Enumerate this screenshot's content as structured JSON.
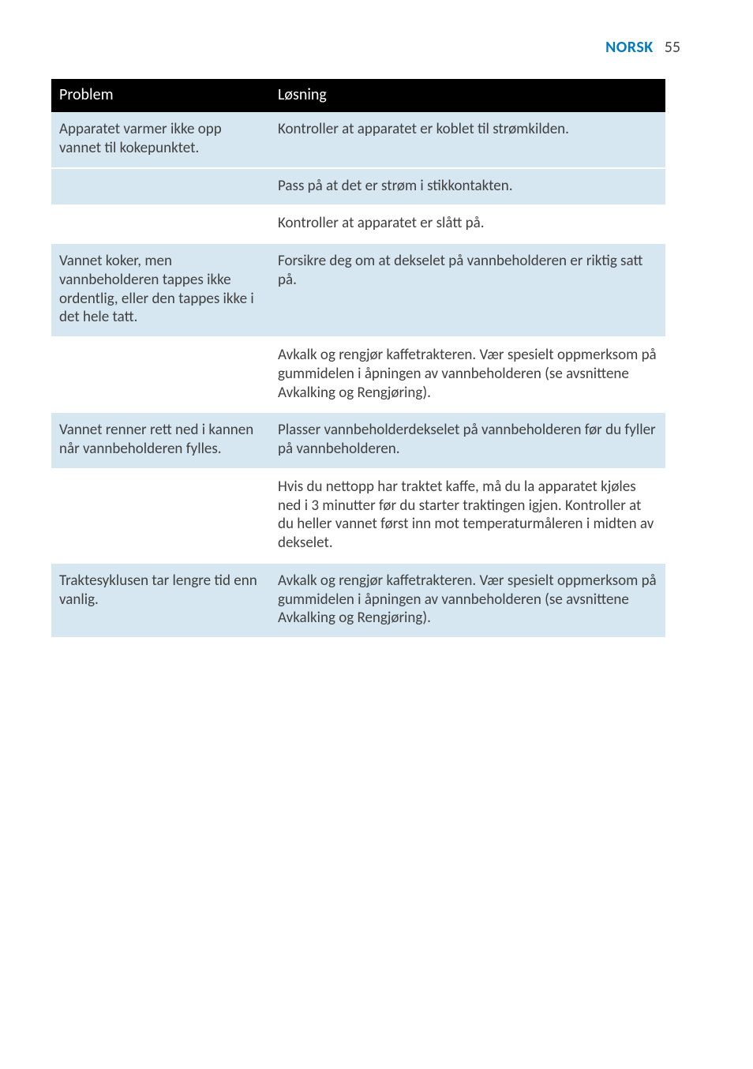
{
  "header": {
    "language": "NORSK",
    "page_number": "55",
    "language_color": "#0079c1"
  },
  "table": {
    "headers": {
      "problem": "Problem",
      "solution": "Løsning"
    },
    "header_bg": "#000000",
    "header_fg": "#ffffff",
    "shade_bg": "#d7e7f1",
    "rows": [
      {
        "shade": true,
        "problem": "Apparatet varmer ikke opp vannet til kokepunktet.",
        "solution": "Kontroller at apparatet er koblet til strømkilden."
      },
      {
        "shade": true,
        "problem": "",
        "solution": "Pass på at det er strøm i stikkontakten."
      },
      {
        "shade": false,
        "problem": "",
        "solution": "Kontroller at apparatet er slått på."
      },
      {
        "shade": true,
        "problem": "Vannet koker, men vannbeholderen tappes ikke ordentlig, eller den tappes ikke i det hele tatt.",
        "solution": "Forsikre deg om at dekselet på vannbeholderen er riktig satt på."
      },
      {
        "shade": false,
        "problem": "",
        "solution": "Avkalk og rengjør kaffetrakteren. Vær spesielt oppmerksom på gummidelen i åpningen av vannbeholderen (se avsnittene Avkalking og Rengjøring)."
      },
      {
        "shade": true,
        "problem": "Vannet renner rett ned i kannen når vannbeholderen fylles.",
        "solution": "Plasser vannbeholderdekselet på vannbeholderen før du fyller på vannbeholderen."
      },
      {
        "shade": false,
        "problem": "",
        "solution": "Hvis du nettopp har traktet kaffe, må du la apparatet kjøles ned i 3 minutter før du starter traktingen igjen. Kontroller at du heller vannet først inn mot temperaturmåleren i midten av dekselet."
      },
      {
        "shade": true,
        "problem": "Traktesyklusen tar lengre tid enn vanlig.",
        "solution": "Avkalk og rengjør kaffetrakteren. Vær spesielt oppmerksom på gummidelen i åpningen av vannbeholderen (se avsnittene Avkalking og Rengjøring)."
      }
    ]
  }
}
